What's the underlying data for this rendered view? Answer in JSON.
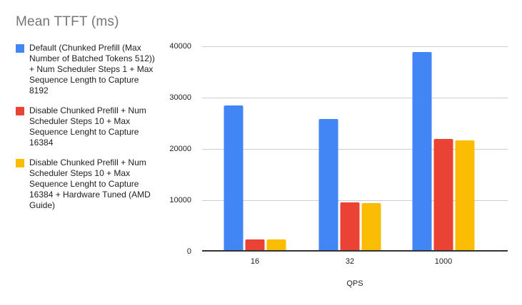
{
  "title": "Mean TTFT (ms)",
  "legend": {
    "items": [
      {
        "label": "Default (Chunked Prefill (Max Number of Batched Tokens 512)) + Num Scheduler Steps 1 + Max Sequence Length to Capture 8192",
        "color": "#4285F4"
      },
      {
        "label": "Disable Chunked Prefill + Num Scheduler Steps 10 + Max Sequence Lenght to Capture 16384",
        "color": "#EA4335"
      },
      {
        "label": "Disable Chunked Prefill + Num Scheduler Steps 10 + Max Sequence Lenght to Capture 16384 + Hardware Tuned (AMD Guide)",
        "color": "#FBBC04"
      }
    ]
  },
  "chart_data": {
    "type": "bar",
    "title": "Mean TTFT (ms)",
    "categories": [
      "16",
      "32",
      "1000"
    ],
    "series": [
      {
        "name": "Default (Chunked Prefill (Max Number of Batched Tokens 512)) + Num Scheduler Steps 1 + Max Sequence Length to Capture 8192",
        "color": "#4285F4",
        "values": [
          28400,
          25800,
          38900
        ]
      },
      {
        "name": "Disable Chunked Prefill + Num Scheduler Steps 10 + Max Sequence Lenght to Capture 16384",
        "color": "#EA4335",
        "values": [
          2100,
          9400,
          21800
        ]
      },
      {
        "name": "Disable Chunked Prefill + Num Scheduler Steps 10 + Max Sequence Lenght to Capture 16384 + Hardware Tuned (AMD Guide)",
        "color": "#FBBC04",
        "values": [
          2100,
          9300,
          21500
        ]
      }
    ],
    "xlabel": "QPS",
    "ylabel": "",
    "ylim": [
      0,
      40000
    ],
    "yticks": [
      0,
      10000,
      20000,
      30000,
      40000
    ],
    "ytick_labels": [
      "0",
      "10000",
      "20000",
      "30000",
      "40000"
    ],
    "grid": true,
    "legend_position": "left",
    "colors": {
      "gridline": "#cccccc",
      "axis_line": "#333333",
      "title_text": "#757575",
      "tick_text": "#202124"
    }
  }
}
